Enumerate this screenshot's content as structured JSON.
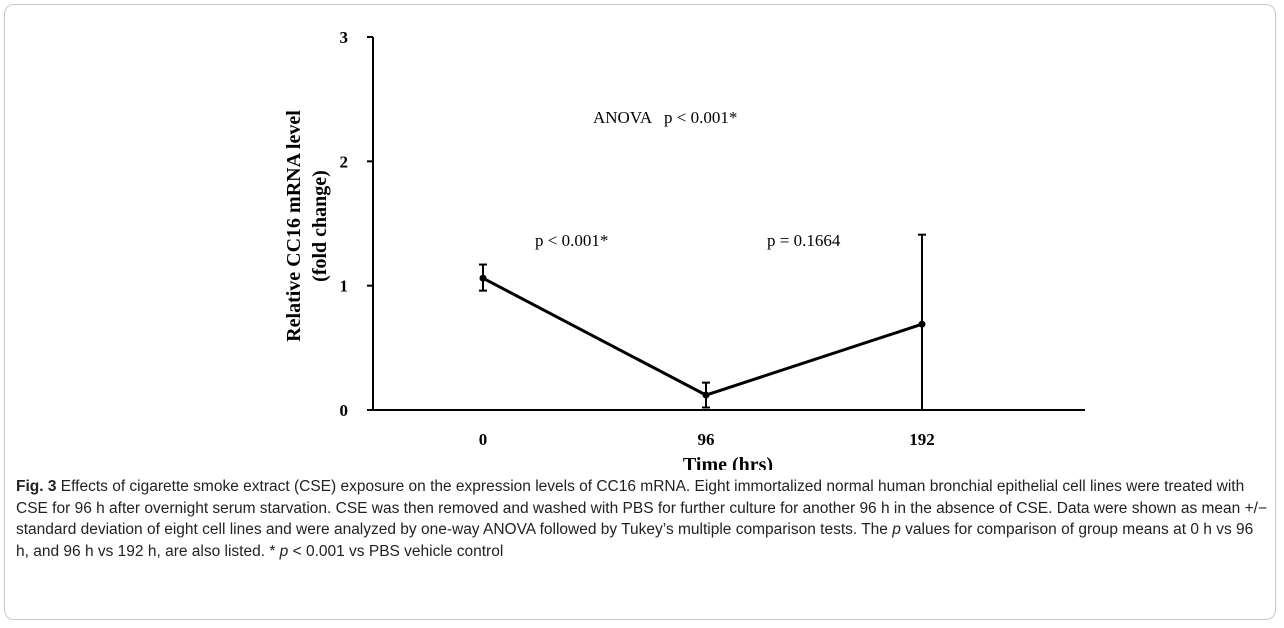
{
  "chart_data": {
    "type": "line",
    "xlabel": "Time (hrs)",
    "ylabel_line1": "Relative CC16 mRNA level",
    "ylabel_line2": "(fold change)",
    "x_categories": [
      "0",
      "96",
      "192"
    ],
    "y_ticks": [
      "0",
      "1",
      "2",
      "3"
    ],
    "ylim": [
      0,
      3
    ],
    "grid": false,
    "series": [
      {
        "values": [
          1.06,
          0.12,
          0.69
        ],
        "error_upper": [
          0.11,
          0.1,
          0.72
        ],
        "error_lower": [
          0.1,
          0.1,
          0.69
        ]
      }
    ],
    "annotations": {
      "anova": "ANOVA   p < 0.001*",
      "p_0_96": "p < 0.001*",
      "p_96_192": "p = 0.1664"
    },
    "color": "#000000"
  },
  "caption": {
    "fig_label": "Fig. 3",
    "part1": " Effects of cigarette smoke extract (CSE) exposure on the expression levels of CC16 mRNA. Eight immortalized normal human bronchial epithelial cell lines were treated with CSE for 96 h after overnight serum starvation. CSE was then removed and washed with PBS for further culture for another 96 h in the absence of CSE. Data were shown as mean +/− standard deviation of eight cell lines and were analyzed by one-way ANOVA followed by Tukey’s multiple comparison tests. The ",
    "p1": "p",
    "part2": " values for comparison of group means at 0 h vs 96 h, and 96 h vs 192 h, are also listed. * ",
    "p2": "p",
    "part3": " < 0.001 vs PBS vehicle control"
  }
}
